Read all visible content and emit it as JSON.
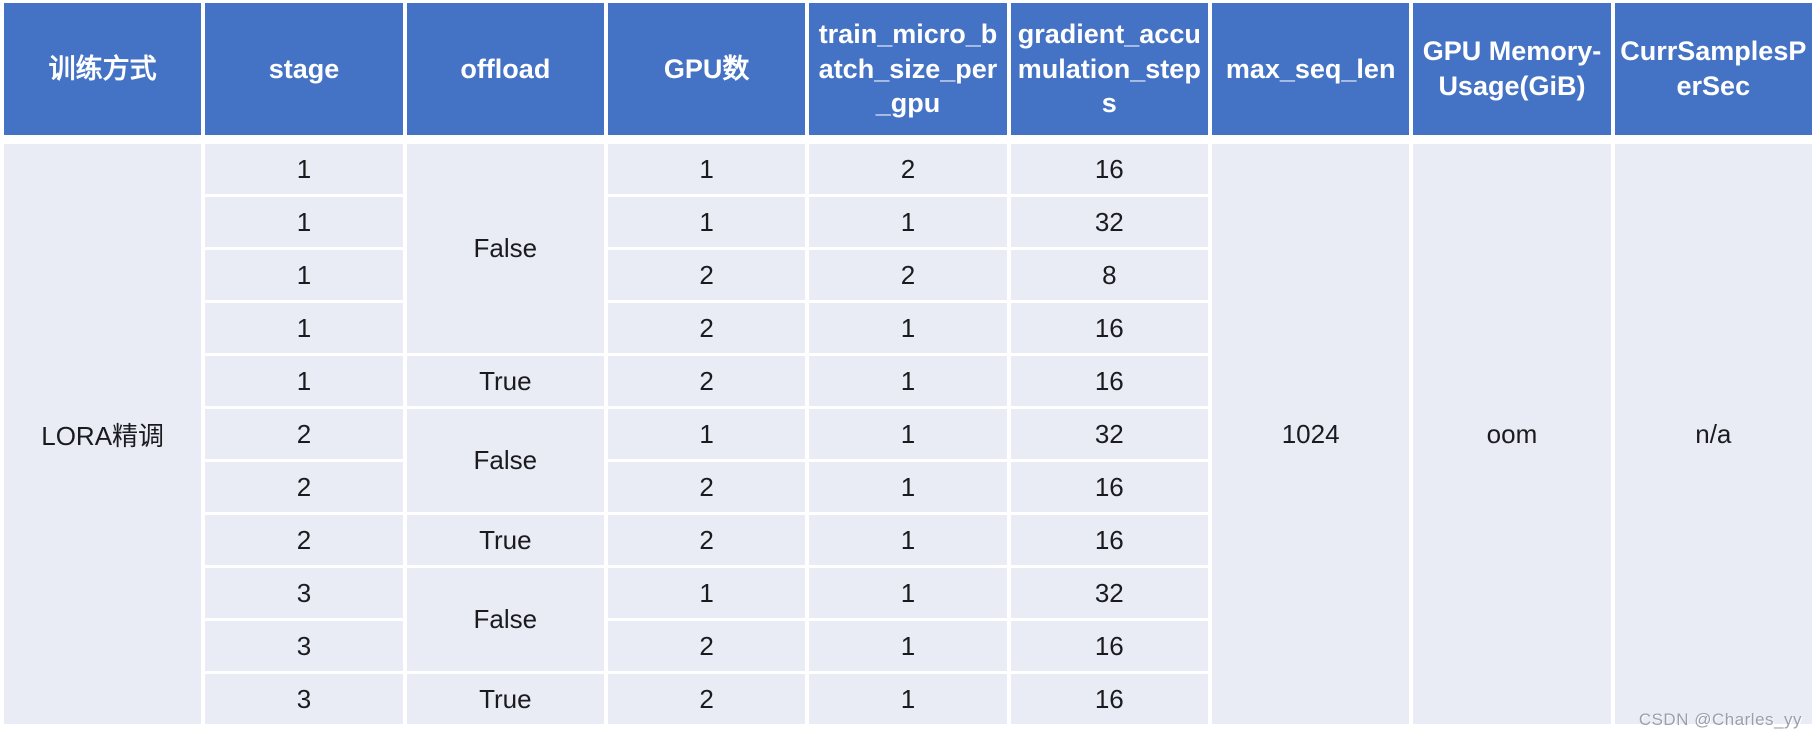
{
  "colors": {
    "header_bg": "#4472C4",
    "header_text": "#FFFFFF",
    "cell_bg": "#E9EBF5",
    "grid": "#FFFFFF",
    "body_text": "#1B1B1F",
    "watermark_text": "#9AA0AB"
  },
  "watermark": "CSDN @Charles_yy",
  "chart_data": {
    "type": "table",
    "title": "",
    "columns": [
      "训练方式",
      "stage",
      "offload",
      "GPU数",
      "train_micro_batch_size_per_gpu",
      "gradient_accumulation_steps",
      "max_seq_len",
      "GPU Memory-Usage(GiB)",
      "CurrSamplesPerSec"
    ],
    "merged_values": {
      "training_method": "LORA精调",
      "max_seq_len": "1024",
      "gpu_memory_usage": "oom",
      "curr_samples_per_sec": "n/a"
    },
    "offload_groups": [
      {
        "value": "False",
        "rows": 4
      },
      {
        "value": "True",
        "rows": 1
      },
      {
        "value": "False",
        "rows": 2
      },
      {
        "value": "True",
        "rows": 1
      },
      {
        "value": "False",
        "rows": 2
      },
      {
        "value": "True",
        "rows": 1
      }
    ],
    "rows": [
      {
        "stage": "1",
        "gpus": "1",
        "micro_batch": "2",
        "grad_accum": "16"
      },
      {
        "stage": "1",
        "gpus": "1",
        "micro_batch": "1",
        "grad_accum": "32"
      },
      {
        "stage": "1",
        "gpus": "2",
        "micro_batch": "2",
        "grad_accum": "8"
      },
      {
        "stage": "1",
        "gpus": "2",
        "micro_batch": "1",
        "grad_accum": "16"
      },
      {
        "stage": "1",
        "gpus": "2",
        "micro_batch": "1",
        "grad_accum": "16"
      },
      {
        "stage": "2",
        "gpus": "1",
        "micro_batch": "1",
        "grad_accum": "32"
      },
      {
        "stage": "2",
        "gpus": "2",
        "micro_batch": "1",
        "grad_accum": "16"
      },
      {
        "stage": "2",
        "gpus": "2",
        "micro_batch": "1",
        "grad_accum": "16"
      },
      {
        "stage": "3",
        "gpus": "1",
        "micro_batch": "1",
        "grad_accum": "32"
      },
      {
        "stage": "3",
        "gpus": "2",
        "micro_batch": "1",
        "grad_accum": "16"
      },
      {
        "stage": "3",
        "gpus": "2",
        "micro_batch": "1",
        "grad_accum": "16"
      }
    ]
  }
}
